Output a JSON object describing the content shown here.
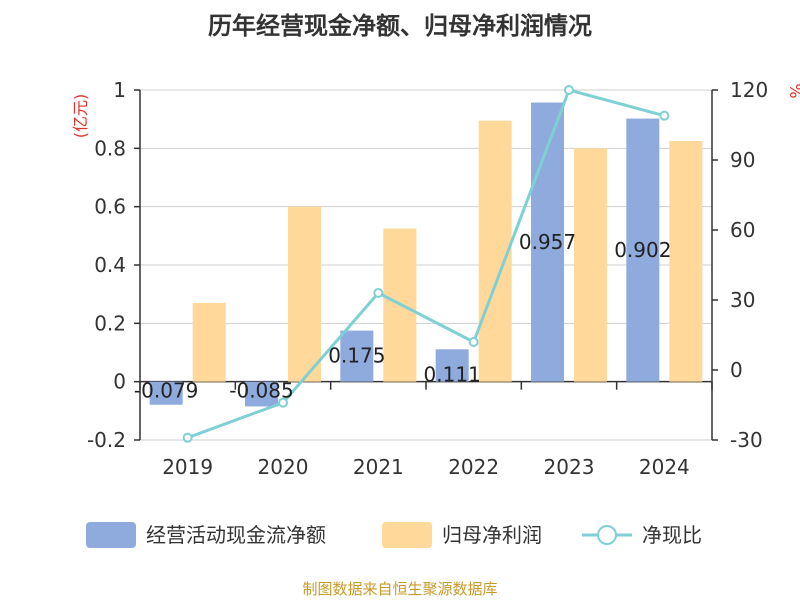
{
  "title": "历年经营现金净额、归母净利润情况",
  "source": "制图数据来自恒生聚源数据库",
  "colors": {
    "cash": "#8faadc",
    "profit": "#ffd89a",
    "ratio": "#7fd0d4",
    "unit": "#e0322b",
    "source": "#c89a2a"
  },
  "chart_data": {
    "type": "bar",
    "categories": [
      "2019",
      "2020",
      "2021",
      "2022",
      "2023",
      "2024"
    ],
    "left_axis": {
      "unit": "(亿元)",
      "ylim": [
        -0.2,
        1
      ],
      "ticks": [
        "1",
        "0.8",
        "0.6",
        "0.4",
        "0.2",
        "0",
        "-0.2"
      ]
    },
    "right_axis": {
      "unit": "%",
      "ylim": [
        -30,
        120
      ],
      "ticks": [
        "120",
        "90",
        "60",
        "30",
        "0",
        "-30"
      ]
    },
    "series": [
      {
        "name": "经营活动现金流净额",
        "type": "bar",
        "axis": "left",
        "values": [
          -0.079,
          -0.085,
          0.175,
          0.111,
          0.957,
          0.902
        ],
        "labels": [
          "-0.079",
          "-0.085",
          "0.175",
          "0.111",
          "0.957",
          "0.902"
        ]
      },
      {
        "name": "归母净利润",
        "type": "bar",
        "axis": "left",
        "values": [
          0.27,
          0.6,
          0.525,
          0.895,
          0.8,
          0.825
        ]
      },
      {
        "name": "净现比",
        "type": "line",
        "axis": "right",
        "values": [
          -29,
          -14,
          33,
          12,
          120,
          109
        ]
      }
    ],
    "grid": true,
    "legend_position": "bottom"
  }
}
